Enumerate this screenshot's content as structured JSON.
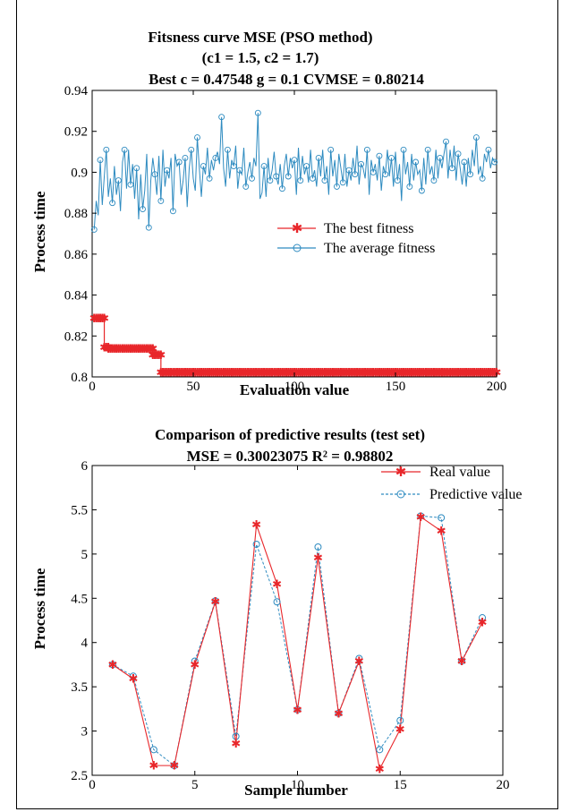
{
  "chart_data": [
    {
      "type": "line",
      "title_lines": [
        "Fitsness curve MSE (PSO method)",
        "(c1 = 1.5, c2 = 1.7)",
        "Best c = 0.47548 g = 0.1 CVMSE = 0.80214"
      ],
      "xlabel": "Evaluation value",
      "ylabel": "Process time",
      "xlim": [
        0,
        200
      ],
      "ylim": [
        0.8,
        0.94
      ],
      "xticks": [
        0,
        50,
        100,
        150,
        200
      ],
      "yticks": [
        0.8,
        0.82,
        0.84,
        0.86,
        0.88,
        0.9,
        0.92,
        0.94
      ],
      "ytick_labels": [
        "0.8",
        "0.82",
        "0.84",
        "0.86",
        "0.88",
        "0.9",
        "0.92",
        "0.94"
      ],
      "legend_position": "right",
      "series": [
        {
          "name": "The best fitness",
          "color": "#e8262a",
          "marker": "asterisk",
          "segments": [
            {
              "from": 1,
              "to": 6,
              "y": 0.8287
            },
            {
              "from": 6,
              "to": 8,
              "y": 0.8145
            },
            {
              "from": 8,
              "to": 30,
              "y": 0.8138
            },
            {
              "from": 30,
              "to": 34,
              "y": 0.8108
            },
            {
              "from": 34,
              "to": 200,
              "y": 0.80214
            }
          ]
        },
        {
          "name": "The average fitness",
          "color": "#2e8bc0",
          "marker": "circle",
          "values": [
            0.872,
            0.886,
            0.879,
            0.906,
            0.884,
            0.898,
            0.911,
            0.888,
            0.897,
            0.885,
            0.903,
            0.889,
            0.896,
            0.881,
            0.905,
            0.911,
            0.892,
            0.911,
            0.894,
            0.904,
            0.887,
            0.902,
            0.877,
            0.899,
            0.882,
            0.891,
            0.909,
            0.873,
            0.896,
            0.907,
            0.899,
            0.889,
            0.908,
            0.886,
            0.911,
            0.893,
            0.901,
            0.897,
            0.907,
            0.881,
            0.909,
            0.903,
            0.905,
            0.889,
            0.896,
            0.907,
            0.883,
            0.902,
            0.911,
            0.897,
            0.891,
            0.917,
            0.902,
            0.888,
            0.903,
            0.899,
            0.912,
            0.897,
            0.906,
            0.901,
            0.907,
            0.91,
            0.904,
            0.927,
            0.902,
            0.893,
            0.911,
            0.897,
            0.906,
            0.903,
            0.913,
            0.892,
            0.901,
            0.899,
            0.912,
            0.893,
            0.9,
            0.905,
            0.897,
            0.907,
            0.903,
            0.929,
            0.887,
            0.89,
            0.903,
            0.888,
            0.907,
            0.896,
            0.901,
            0.91,
            0.898,
            0.894,
            0.904,
            0.892,
            0.903,
            0.909,
            0.898,
            0.907,
            0.902,
            0.906,
            0.889,
            0.912,
            0.896,
            0.908,
            0.899,
            0.903,
            0.895,
            0.911,
            0.897,
            0.901,
            0.893,
            0.907,
            0.898,
            0.911,
            0.896,
            0.903,
            0.889,
            0.911,
            0.898,
            0.906,
            0.893,
            0.909,
            0.902,
            0.895,
            0.909,
            0.893,
            0.901,
            0.896,
            0.907,
            0.899,
            0.913,
            0.894,
            0.904,
            0.902,
            0.897,
            0.911,
            0.889,
            0.906,
            0.9,
            0.904,
            0.896,
            0.908,
            0.891,
            0.903,
            0.899,
            0.911,
            0.898,
            0.907,
            0.893,
            0.91,
            0.896,
            0.904,
            0.886,
            0.911,
            0.899,
            0.905,
            0.893,
            0.909,
            0.896,
            0.905,
            0.899,
            0.901,
            0.891,
            0.907,
            0.894,
            0.911,
            0.899,
            0.903,
            0.896,
            0.911,
            0.897,
            0.907,
            0.902,
            0.909,
            0.915,
            0.897,
            0.911,
            0.902,
            0.913,
            0.896,
            0.909,
            0.902,
            0.894,
            0.905,
            0.893,
            0.907,
            0.899,
            0.911,
            0.903,
            0.917,
            0.899,
            0.903,
            0.897,
            0.909,
            0.905,
            0.911,
            0.902,
            0.907,
            0.905,
            0.906
          ],
          "x_start": 1,
          "x_step": 1
        }
      ]
    },
    {
      "type": "line",
      "title_lines": [
        "Comparison of predictive results (test set)",
        "MSE = 0.30023075 R² = 0.98802"
      ],
      "xlabel": "Sample number",
      "ylabel": "Process time",
      "xlim": [
        0,
        20
      ],
      "ylim": [
        2.5,
        6
      ],
      "xticks": [
        0,
        5,
        10,
        15,
        20
      ],
      "yticks": [
        2.5,
        3,
        3.5,
        4,
        4.5,
        5,
        5.5,
        6
      ],
      "ytick_labels": [
        "2.5",
        "3",
        "3.5",
        "4",
        "4.5",
        "5",
        "5.5",
        "6"
      ],
      "legend_position": "top-right",
      "series": [
        {
          "name": "Real value",
          "color": "#e8262a",
          "marker": "asterisk",
          "x": [
            1,
            2,
            3,
            4,
            5,
            6,
            7,
            8,
            9,
            10,
            11,
            12,
            13,
            14,
            15,
            16,
            17,
            18,
            19
          ],
          "y": [
            3.75,
            3.59,
            2.61,
            2.61,
            3.75,
            4.46,
            2.86,
            5.33,
            4.66,
            3.24,
            4.96,
            3.2,
            3.79,
            2.57,
            3.02,
            5.42,
            5.26,
            3.79,
            4.23
          ]
        },
        {
          "name": "Predictive value",
          "color": "#2e8bc0",
          "marker": "circle",
          "x": [
            1,
            2,
            3,
            4,
            5,
            6,
            7,
            8,
            9,
            10,
            11,
            12,
            13,
            14,
            15,
            16,
            17,
            18,
            19
          ],
          "y": [
            3.75,
            3.62,
            2.79,
            2.61,
            3.79,
            4.47,
            2.94,
            5.11,
            4.46,
            3.24,
            5.08,
            3.2,
            3.82,
            2.79,
            3.12,
            5.43,
            5.41,
            3.79,
            4.28
          ]
        }
      ]
    }
  ]
}
